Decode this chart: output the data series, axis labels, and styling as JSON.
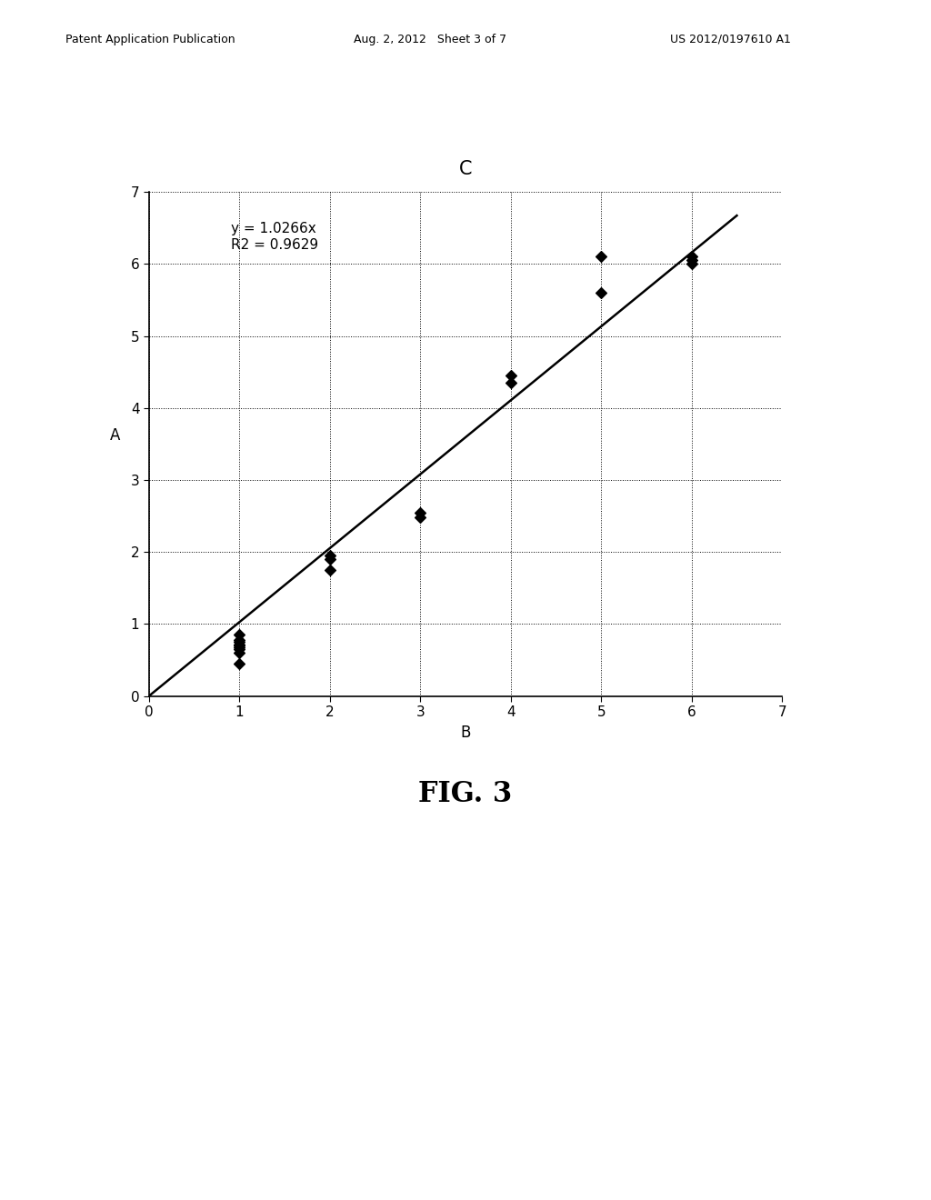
{
  "title": "C",
  "xlabel": "B",
  "ylabel": "A",
  "xlim": [
    0,
    7
  ],
  "ylim": [
    0,
    7
  ],
  "xticks": [
    0,
    1,
    2,
    3,
    4,
    5,
    6,
    7
  ],
  "yticks": [
    0,
    1,
    2,
    3,
    4,
    5,
    6,
    7
  ],
  "equation": "y = 1.0266x",
  "r2": "R2 = 0.9629",
  "slope": 1.0266,
  "scatter_x": [
    1,
    1,
    1,
    1,
    1,
    1,
    1,
    1,
    1,
    2,
    2,
    2,
    3,
    3,
    4,
    4,
    5,
    5,
    6,
    6,
    6
  ],
  "scatter_y": [
    0.85,
    0.75,
    0.72,
    0.68,
    0.65,
    0.6,
    0.78,
    0.7,
    0.45,
    1.95,
    1.9,
    1.75,
    2.55,
    2.48,
    4.45,
    4.35,
    6.1,
    5.6,
    6.05,
    6.0,
    6.1
  ],
  "marker_color": "#000000",
  "marker_size": 6,
  "line_color": "#000000",
  "line_width": 1.8,
  "grid_color": "#000000",
  "grid_linewidth": 0.7,
  "background_color": "#ffffff",
  "header_left": "Patent Application Publication",
  "header_center": "Aug. 2, 2012   Sheet 3 of 7",
  "header_right": "US 2012/0197610 A1",
  "fig_label": "FIG. 3",
  "title_fontsize": 15,
  "axis_label_fontsize": 12,
  "tick_fontsize": 11,
  "annotation_fontsize": 11,
  "header_fontsize": 9,
  "fig_label_fontsize": 22
}
